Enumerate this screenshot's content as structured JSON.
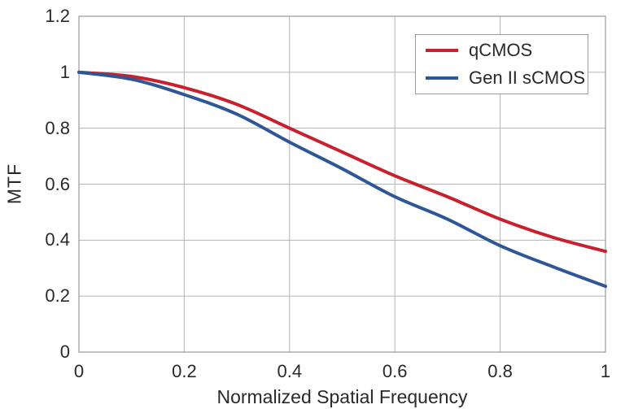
{
  "chart_data": {
    "type": "line",
    "title": "",
    "xlabel": "Normalized Spatial Frequency",
    "ylabel": "MTF",
    "xlim": [
      0,
      1
    ],
    "ylim": [
      0,
      1.2
    ],
    "xticks": [
      0,
      0.2,
      0.4,
      0.6,
      0.8,
      1
    ],
    "xtick_labels": [
      "0",
      "0.2",
      "0.4",
      "0.6",
      "0.8",
      "1"
    ],
    "yticks": [
      0,
      0.2,
      0.4,
      0.6,
      0.8,
      1,
      1.2
    ],
    "ytick_labels": [
      "0",
      "0.2",
      "0.4",
      "0.6",
      "0.8",
      "1",
      "1.2"
    ],
    "grid": true,
    "legend_position": "top-right",
    "x": [
      0,
      0.1,
      0.2,
      0.3,
      0.4,
      0.5,
      0.6,
      0.7,
      0.8,
      0.9,
      1.0
    ],
    "series": [
      {
        "name": "qCMOS",
        "color": "#c8202d",
        "values": [
          1.0,
          0.985,
          0.945,
          0.885,
          0.8,
          0.715,
          0.63,
          0.555,
          0.475,
          0.41,
          0.36
        ]
      },
      {
        "name": "Gen II sCMOS",
        "color": "#2f5795",
        "values": [
          1.0,
          0.975,
          0.92,
          0.85,
          0.75,
          0.655,
          0.555,
          0.475,
          0.38,
          0.305,
          0.235
        ]
      }
    ],
    "colors": {
      "grid": "#b3b3b3",
      "frame": "#999999",
      "text": "#2b2828",
      "background": "#ffffff"
    }
  }
}
